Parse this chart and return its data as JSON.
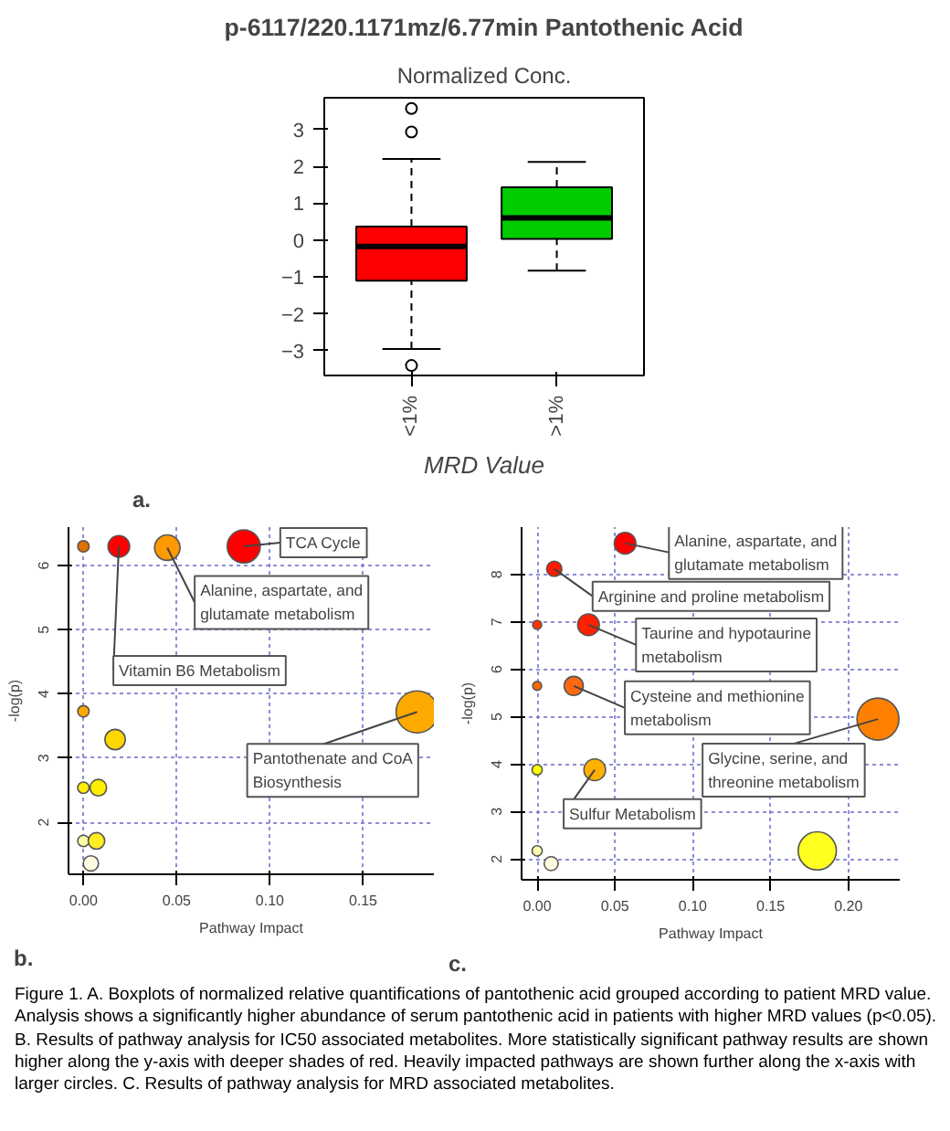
{
  "chart_data": [
    {
      "type": "box",
      "title": "p-6117/220.1171mz/6.77min Pantothenic Acid",
      "subtitle": "Normalized Conc.",
      "xlabel": "MRD Value",
      "categories": [
        "<1%",
        ">1%"
      ],
      "colors": [
        "#ff0000",
        "#00cc00"
      ],
      "boxes": [
        {
          "low": -2.95,
          "q1": -1.1,
          "median": -0.17,
          "q3": 0.37,
          "high": 2.2,
          "outliers": [
            3.57,
            2.93,
            -3.4
          ]
        },
        {
          "low": -0.83,
          "q1": 0.03,
          "median": 0.6,
          "q3": 1.43,
          "high": 2.12
        }
      ],
      "ylim": [
        -3.67,
        3.86
      ],
      "yticks": [
        -3,
        -2,
        -1,
        0,
        1,
        2,
        3
      ],
      "annotations": [
        "a."
      ]
    },
    {
      "type": "bubble",
      "xlabel": "Pathway Impact",
      "ylabel": "-log(p)",
      "x": [
        0,
        0.019,
        0.045,
        0.086,
        0.179,
        0,
        0.017,
        0,
        0.008,
        0,
        0.007,
        0.004
      ],
      "values": [
        6.3,
        6.3,
        6.28,
        6.3,
        3.72,
        3.73,
        3.29,
        2.54,
        2.54,
        1.71,
        1.71,
        1.36
      ],
      "sizes": [
        0.074,
        0.265,
        0.367,
        0.62,
        1,
        0.074,
        0.235,
        0.074,
        0.155,
        0.074,
        0.155,
        0.132
      ],
      "colors": [
        "#e07000",
        "#ff0000",
        "#ff9900",
        "#ff0000",
        "#ffaa00",
        "#ffa500",
        "#ffd700",
        "#ffee00",
        "#ffee00",
        "#ffffaa",
        "#ffee22",
        "#fffde0"
      ],
      "xlim": [
        -0.008,
        0.188
      ],
      "ylim": [
        1.19,
        6.6
      ],
      "xticks": [
        {
          "value": 0,
          "label": "0.00"
        },
        {
          "value": 0.05,
          "label": "0.05"
        },
        {
          "value": 0.1,
          "label": "0.10"
        },
        {
          "value": 0.15,
          "label": "0.15"
        }
      ],
      "yticks": [
        2,
        3,
        4,
        5,
        6
      ],
      "grid": true,
      "annotations": [
        "b.",
        {
          "text": "TCA Cycle",
          "x": 0.086,
          "y": 6.3
        },
        {
          "text": "Alanine, aspartate, and\nglutamate metabolism",
          "x": 0.045,
          "y": 6.28
        },
        {
          "text": "Vitamin B6 Metabolism",
          "x": 0.019,
          "y": 6.3
        },
        {
          "text": "Pantothenate and CoA\nBiosynthesis",
          "x": 0.179,
          "y": 3.72
        }
      ]
    },
    {
      "type": "bubble",
      "xlabel": "Pathway Impact",
      "ylabel": "-log(p)",
      "x": [
        0.0565,
        0.011,
        0,
        0.033,
        0,
        0.0235,
        0.219,
        0,
        0.037,
        0,
        0.18,
        0.009
      ],
      "values": [
        8.66,
        8.12,
        6.94,
        6.94,
        5.65,
        5.65,
        4.95,
        3.88,
        3.88,
        2.17,
        2.17,
        1.9
      ],
      "sizes": [
        0.265,
        0.132,
        0.045,
        0.265,
        0.045,
        0.207,
        1,
        0.059,
        0.265,
        0.059,
        0.826,
        0.111
      ],
      "colors": [
        "#ff0000",
        "#ff1a00",
        "#ff3300",
        "#ff2000",
        "#ff6600",
        "#ff6a10",
        "#ff8000",
        "#ffff00",
        "#ffb000",
        "#ffffb0",
        "#ffff20",
        "#fffde0"
      ],
      "xlim": [
        -0.01,
        0.233
      ],
      "ylim": [
        1.56,
        9.0
      ],
      "xticks": [
        {
          "value": 0,
          "label": "0.00"
        },
        {
          "value": 0.05,
          "label": "0.05"
        },
        {
          "value": 0.1,
          "label": "0.10"
        },
        {
          "value": 0.15,
          "label": "0.15"
        },
        {
          "value": 0.2,
          "label": "0.20"
        }
      ],
      "yticks": [
        2,
        3,
        4,
        5,
        6,
        7,
        8
      ],
      "grid": true,
      "annotations": [
        "c.",
        {
          "text": "Alanine, aspartate, and\nglutamate metabolism",
          "x": 0.0565,
          "y": 8.66
        },
        {
          "text": "Arginine and proline metabolism",
          "x": 0.011,
          "y": 8.12
        },
        {
          "text": "Taurine and hypotaurine\nmetabolism",
          "x": 0.033,
          "y": 6.94
        },
        {
          "text": "Cysteine and methionine\nmetabolism",
          "x": 0.0235,
          "y": 5.65
        },
        {
          "text": "Glycine, serine, and\nthreonine metabolism",
          "x": 0.219,
          "y": 4.95
        },
        {
          "text": "Sulfur Metabolism",
          "x": 0.037,
          "y": 3.88
        }
      ]
    },
    {
      "type": "other",
      "annotations": [
        "Figure 1. A. Boxplots of normalized relative quantifications of pantothenic acid grouped according to patient MRD value. Analysis shows a significantly higher abundance of serum pantothenic acid in patients with higher MRD values (p<0.05). B. Results of pathway analysis for IC50 associated metabolites. More statistically significant pathway results are shown higher along the y-axis with deeper shades of red. Heavily impacted pathways are shown further along the x-axis with larger circles. C. Results of pathway analysis for MRD associated metabolites."
      ]
    }
  ]
}
